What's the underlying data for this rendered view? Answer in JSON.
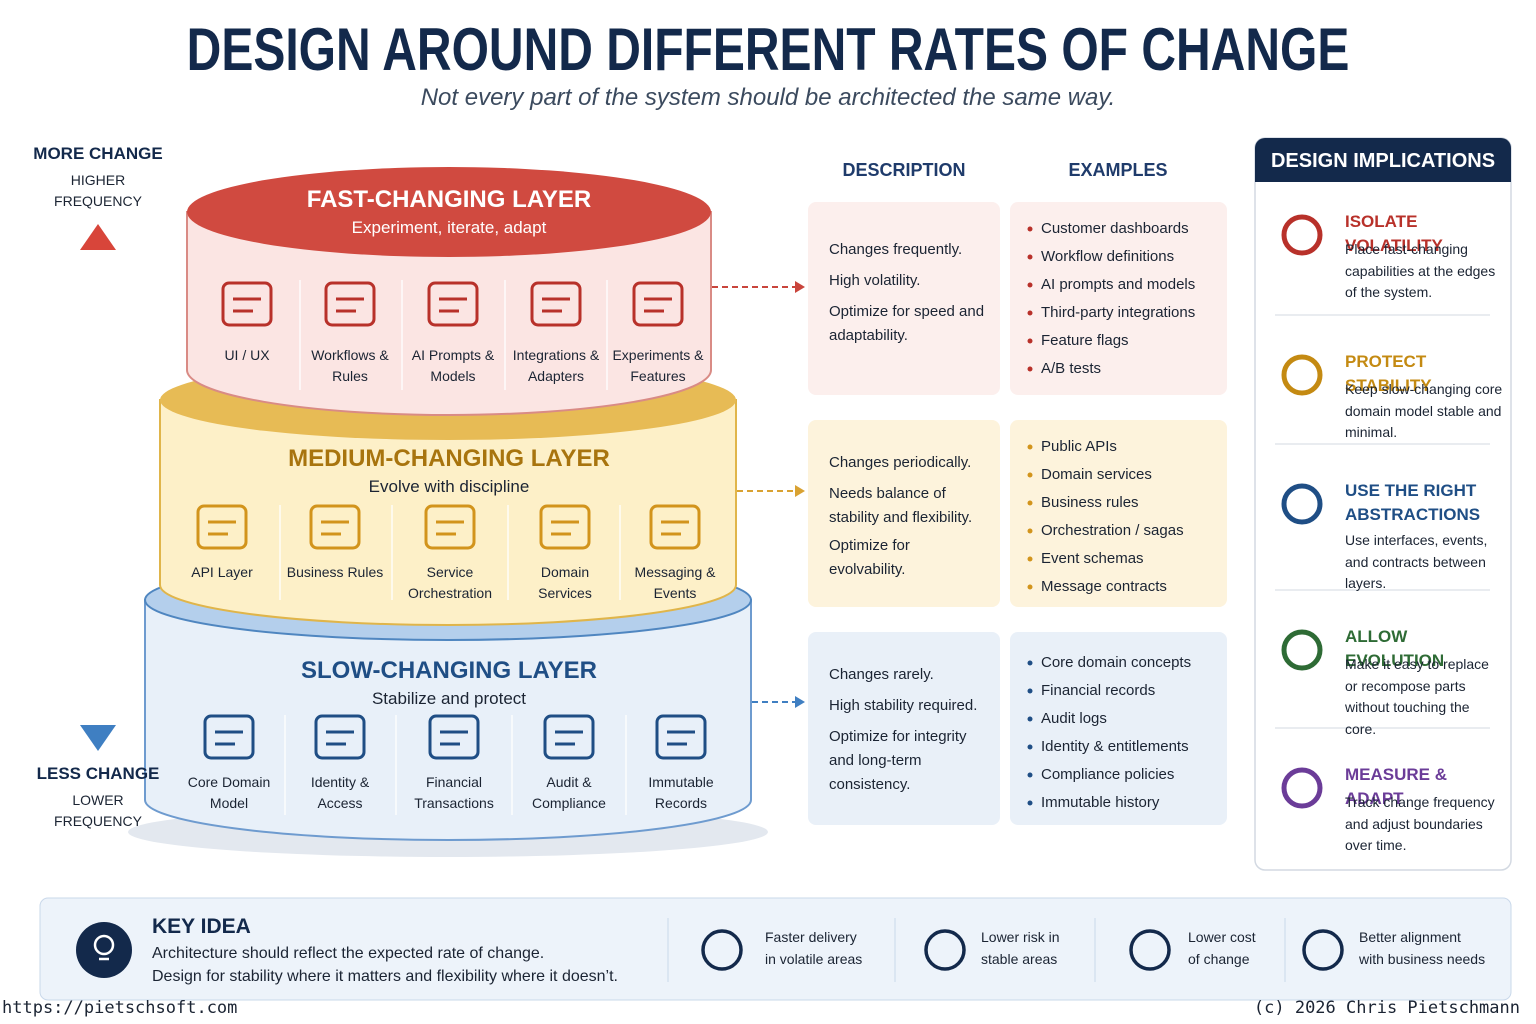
{
  "header": {
    "title": "DESIGN AROUND DIFFERENT RATES OF CHANGE",
    "subtitle": "Not every part of the system should be architected the same way."
  },
  "axis": {
    "top": "MORE CHANGE",
    "top_note": [
      "HIGHER",
      "FREQUENCY"
    ],
    "bottom": "LESS CHANGE",
    "bottom_note": [
      "LOWER",
      "FREQUENCY"
    ]
  },
  "columns": {
    "description": "DESCRIPTION",
    "examples": "EXAMPLES"
  },
  "layers": [
    {
      "title": "FAST-CHANGING LAYER",
      "tagline": "Experiment, iterate, adapt",
      "items": [
        "UI / UX",
        "Workflows & Rules",
        "AI Prompts & Models",
        "Integrations & Adapters",
        "Experiments & Features"
      ],
      "description": [
        "Changes frequently.",
        "High volatility.",
        "Optimize for speed and adaptability."
      ],
      "examples": [
        "Customer dashboards",
        "Workflow definitions",
        "AI prompts and models",
        "Third-party integrations",
        "Feature flags",
        "A/B tests"
      ]
    },
    {
      "title": "MEDIUM-CHANGING LAYER",
      "tagline": "Evolve with discipline",
      "items": [
        "API Layer",
        "Business Rules",
        "Service Orchestration",
        "Domain Services",
        "Messaging & Events"
      ],
      "description": [
        "Changes periodically.",
        "Needs balance of stability and flexibility.",
        "Optimize for evolvability."
      ],
      "examples": [
        "Public APIs",
        "Domain services",
        "Business rules",
        "Orchestration / sagas",
        "Event schemas",
        "Message contracts"
      ]
    },
    {
      "title": "SLOW-CHANGING LAYER",
      "tagline": "Stabilize and protect",
      "items": [
        "Core Domain Model",
        "Identity & Access",
        "Financial Transactions",
        "Audit & Compliance",
        "Immutable Records"
      ],
      "description": [
        "Changes rarely.",
        "High stability required.",
        "Optimize for integrity and long-term consistency."
      ],
      "examples": [
        "Core domain concepts",
        "Financial records",
        "Audit logs",
        "Identity & entitlements",
        "Compliance policies",
        "Immutable history"
      ]
    }
  ],
  "implications": {
    "title": "DESIGN IMPLICATIONS",
    "items": [
      {
        "title": "ISOLATE VOLATILITY",
        "text": "Place fast-changing capabilities at the edges of the system."
      },
      {
        "title": "PROTECT STABILITY",
        "text": "Keep slow-changing core domain model stable and minimal."
      },
      {
        "title": "USE THE RIGHT ABSTRACTIONS",
        "text": "Use interfaces, events, and contracts between layers."
      },
      {
        "title": "ALLOW EVOLUTION",
        "text": "Make it easy to replace or recompose parts without touching the core."
      },
      {
        "title": "MEASURE & ADAPT",
        "text": "Track change frequency and adjust boundaries over time."
      }
    ]
  },
  "key_idea": {
    "title": "KEY IDEA",
    "lines": [
      "Architecture should reflect the expected rate of change.",
      "Design for stability where it matters and flexibility where it doesn’t."
    ],
    "benefits": [
      [
        "Faster delivery",
        "in volatile areas"
      ],
      [
        "Lower risk in",
        "stable areas"
      ],
      [
        "Lower cost",
        "of change"
      ],
      [
        "Better alignment",
        "with business needs"
      ]
    ]
  },
  "footer": {
    "url": "https://pietschsoft.com",
    "copyright": "(c) 2026 Chris Pietschmann"
  }
}
